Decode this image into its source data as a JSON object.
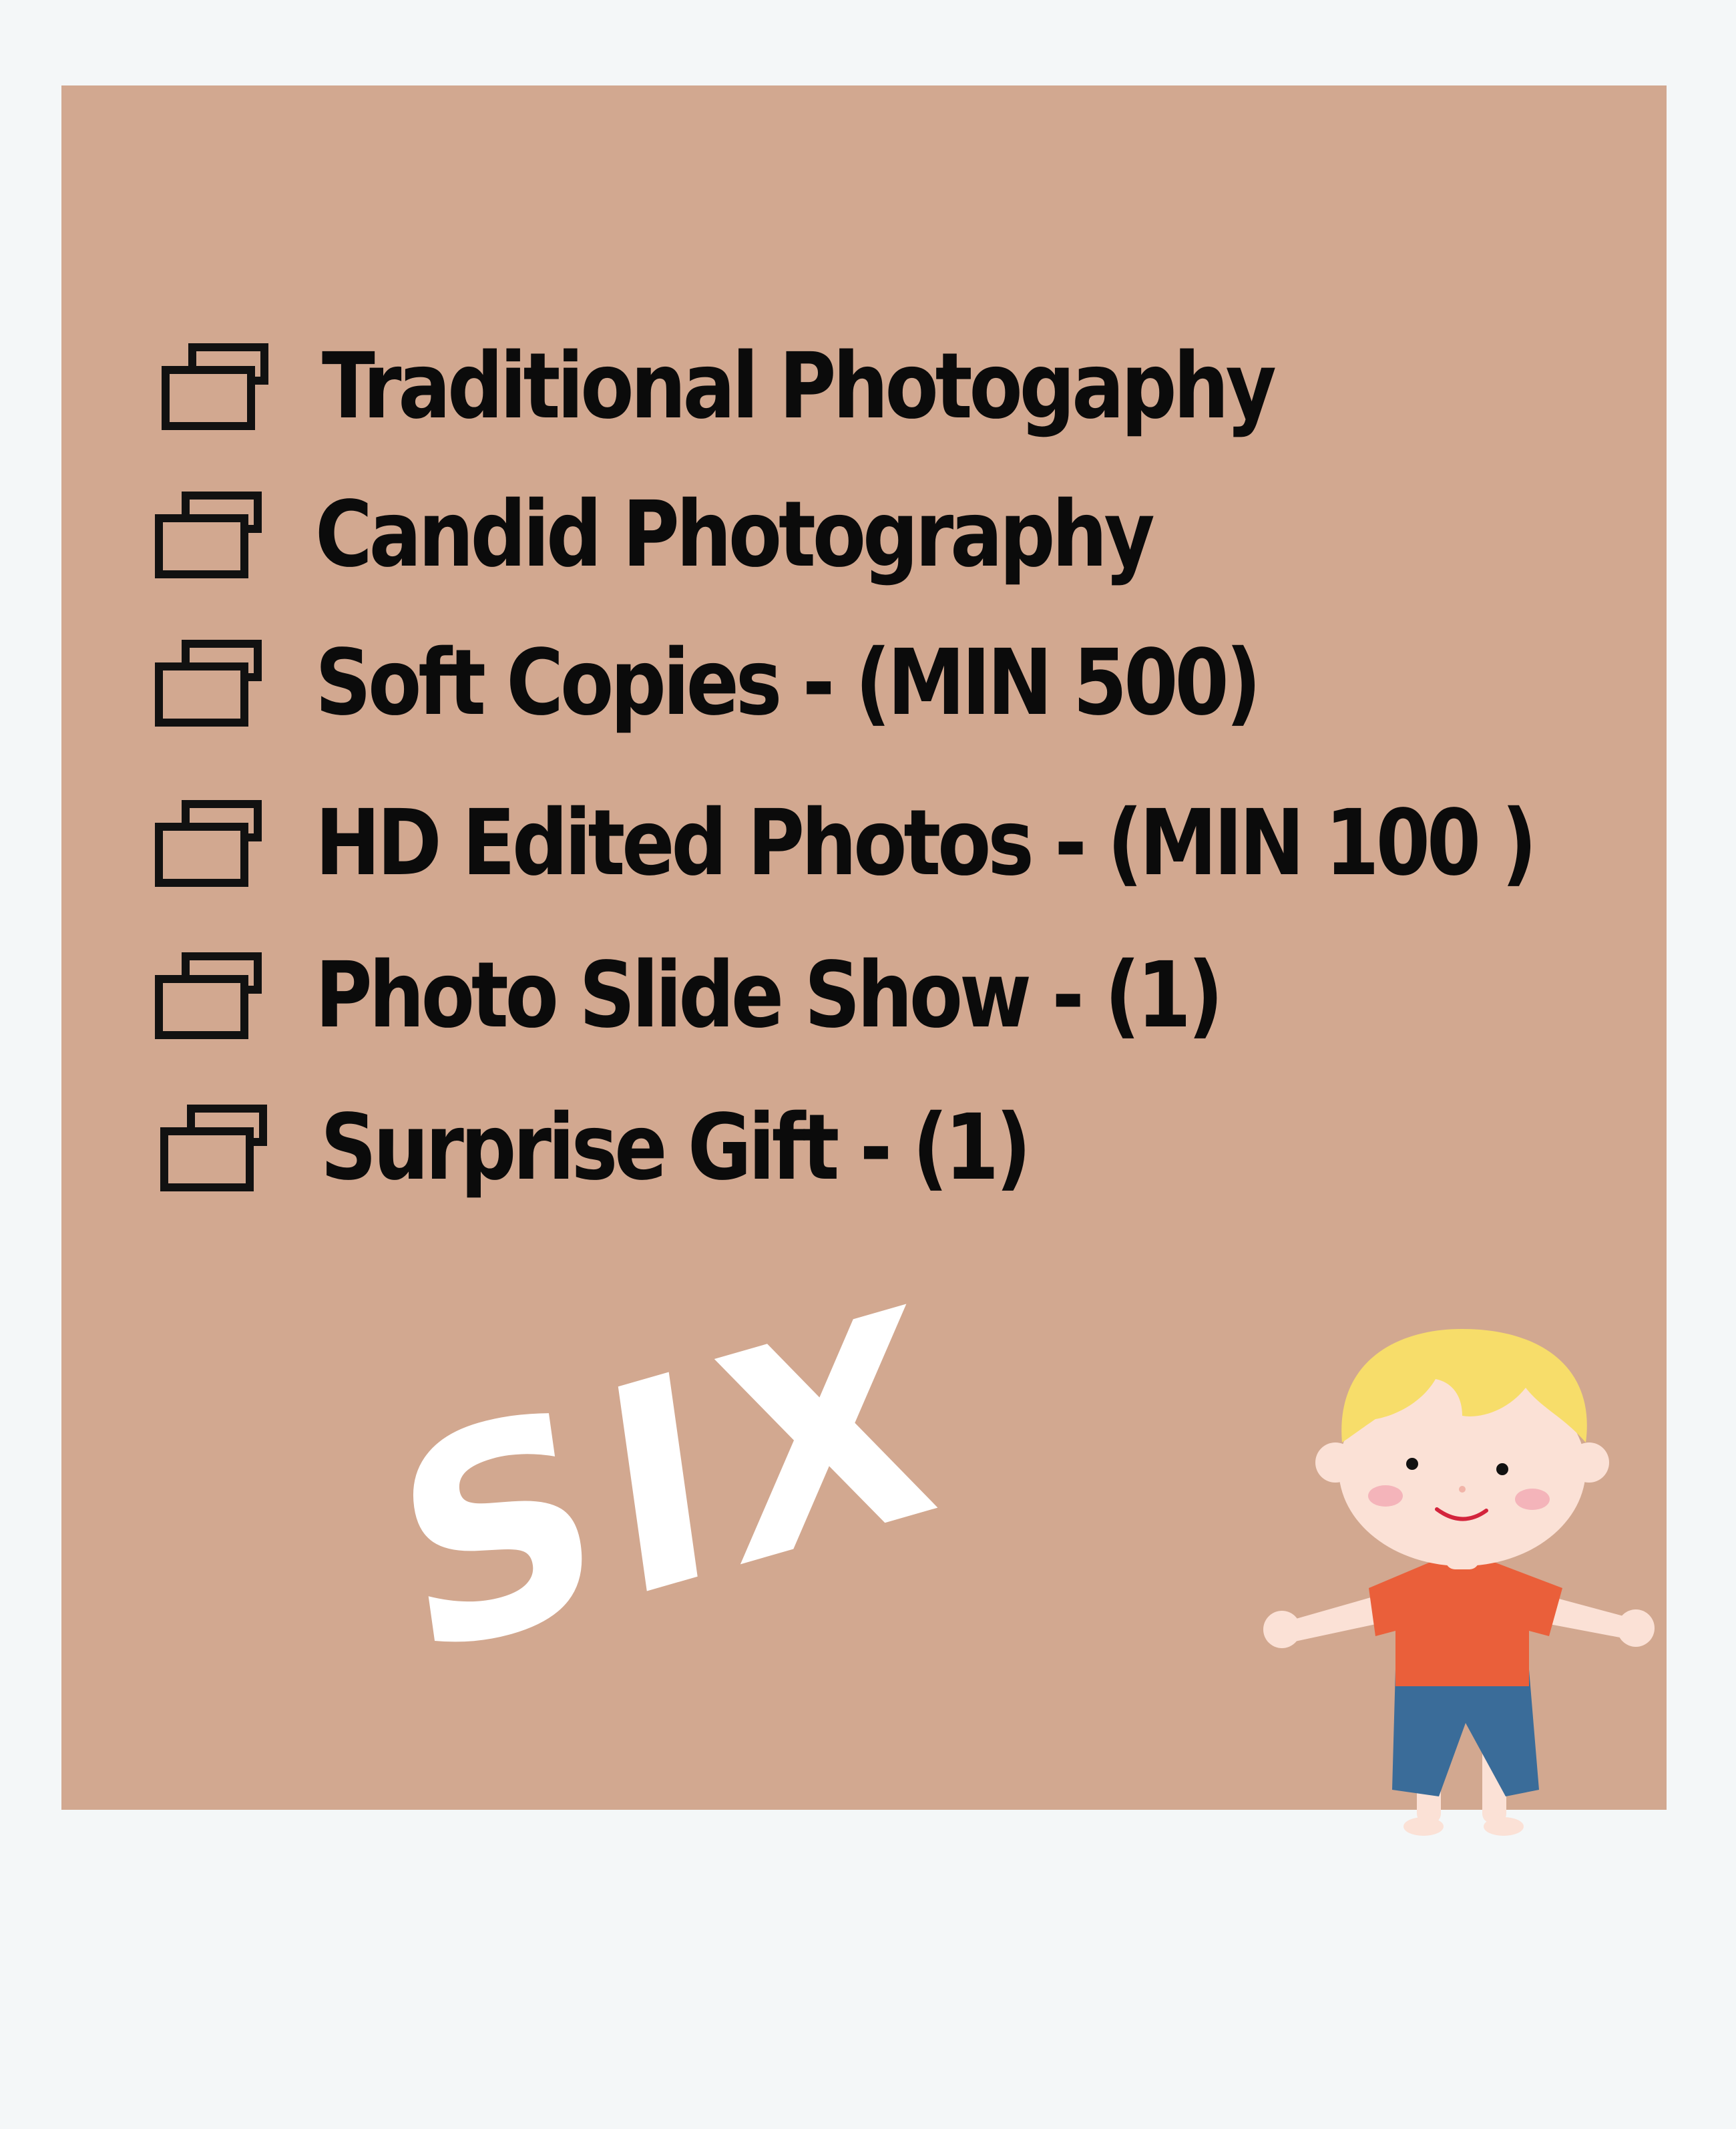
{
  "checklist": {
    "items": [
      {
        "label": "Traditional Photogaphy"
      },
      {
        "label": "Candid Photography"
      },
      {
        "label": "Soft Copies - (MIN 500)"
      },
      {
        "label": "HD Edited Photos - (MIN 100 )"
      },
      {
        "label": "Photo Slide Show - (1)"
      },
      {
        "label": "Surprise Gift - (1)"
      }
    ],
    "icon": "checkbox-icon"
  },
  "package": {
    "title": "SIX"
  },
  "colors": {
    "page_background": "#f4f7f8",
    "card_background": "#d2a890",
    "text": "#0b0b0b",
    "title": "#ffffff",
    "hair": "#f7dd6a",
    "shirt": "#ea5f3a",
    "shorts": "#3a6c99",
    "skin": "#fbe1d6"
  },
  "illustration": {
    "icon": "cartoon-boy"
  }
}
